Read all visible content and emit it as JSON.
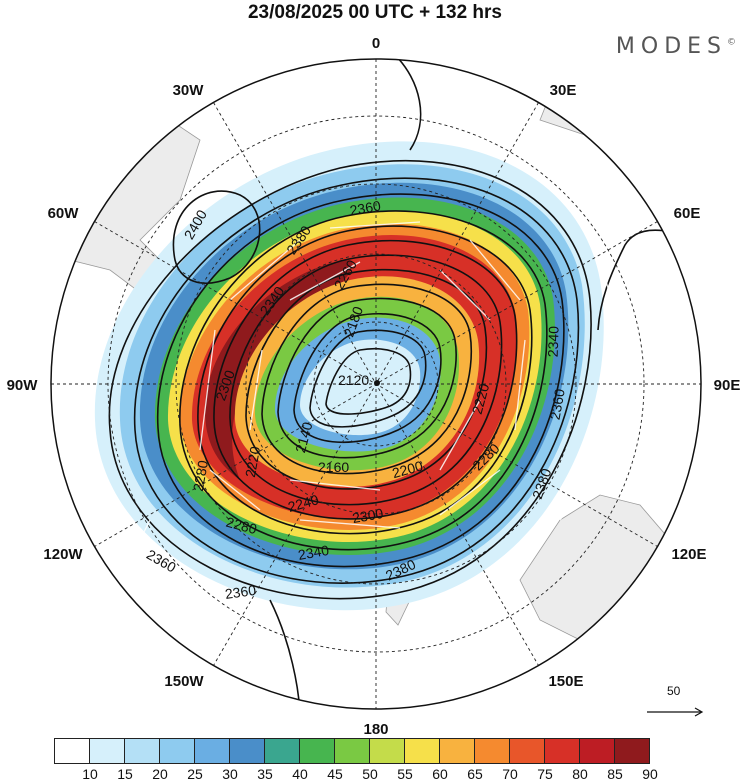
{
  "title": "23/08/2025  00 UTC  + 132 hrs",
  "brand": "MODES",
  "brand_mark": "©",
  "longitude_labels": {
    "n0": "0",
    "n30e": "30E",
    "n60e": "60E",
    "n90e": "90E",
    "n120e": "120E",
    "n150e": "150E",
    "n180": "180",
    "n150w": "150W",
    "n120w": "120W",
    "n90w": "90W",
    "n60w": "60W",
    "n30w": "30W"
  },
  "contours": [
    {
      "label": "2120"
    },
    {
      "label": "2140"
    },
    {
      "label": "2160"
    },
    {
      "label": "2180"
    },
    {
      "label": "2200"
    },
    {
      "label": "2220"
    },
    {
      "label": "2240"
    },
    {
      "label": "2260"
    },
    {
      "label": "2280"
    },
    {
      "label": "2300"
    },
    {
      "label": "2340"
    },
    {
      "label": "2360"
    },
    {
      "label": "2380"
    },
    {
      "label": "2400"
    }
  ],
  "vector_reference": {
    "label": "50",
    "icon": "arrow-right-icon"
  },
  "colorbar": {
    "ticks": [
      "10",
      "15",
      "20",
      "25",
      "30",
      "35",
      "40",
      "45",
      "50",
      "55",
      "60",
      "65",
      "70",
      "75",
      "80",
      "85",
      "90"
    ],
    "colors": [
      "#ffffff",
      "#d6f0fb",
      "#b4e0f6",
      "#8ecbef",
      "#6aaee3",
      "#4a8ec9",
      "#3aa68f",
      "#47b54f",
      "#7ac943",
      "#c4dc4a",
      "#f6e04a",
      "#f8b23f",
      "#f58a2f",
      "#e8562a",
      "#d73027",
      "#bd1d24",
      "#8f1a1d"
    ]
  },
  "chart_data": {
    "type": "polar-stereographic-contour",
    "title": "23/08/2025  00 UTC  + 132 hrs",
    "projection": "south polar stereographic",
    "fill_variable": "wind speed",
    "fill_levels": [
      10,
      15,
      20,
      25,
      30,
      35,
      40,
      45,
      50,
      55,
      60,
      65,
      70,
      75,
      80,
      85,
      90
    ],
    "contour_levels_labeled": [
      2120,
      2140,
      2160,
      2180,
      2200,
      2220,
      2240,
      2260,
      2280,
      2300,
      2340,
      2360,
      2380,
      2400
    ],
    "jet_core_max_range": "85-90",
    "reference_vector": 50,
    "legend_placement": "bottom"
  }
}
